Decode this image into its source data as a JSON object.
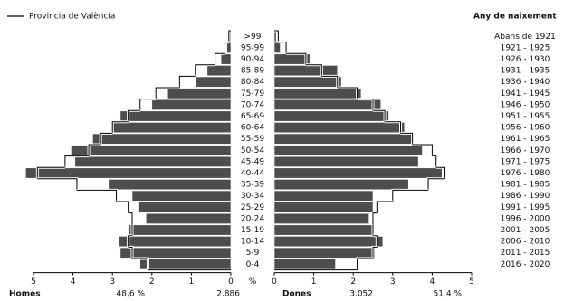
{
  "chart_data": {
    "type": "pyramid",
    "right_title": "Any de naixement",
    "x_unit": "%",
    "categories": [
      ">99",
      "95-99",
      "90-94",
      "85-89",
      "80-84",
      "75-79",
      "70-74",
      "65-69",
      "60-64",
      "55-59",
      "50-54",
      "45-49",
      "40-44",
      "35-39",
      "30-34",
      "25-29",
      "20-24",
      "15-19",
      "10-14",
      "5-9",
      "0-4"
    ],
    "birth_years": [
      "Abans de 1921",
      "1921 - 1925",
      "1926 - 1930",
      "1931 - 1935",
      "1936 - 1940",
      "1941 - 1945",
      "1946 - 1950",
      "1951 - 1955",
      "1956 - 1960",
      "1961 - 1965",
      "1966 - 1970",
      "1971 - 1975",
      "1976 - 1980",
      "1981 - 1985",
      "1986 - 1990",
      "1991 - 1995",
      "1996 - 2000",
      "2001 - 2005",
      "2006 - 2010",
      "2011 - 2015",
      "2016 - 2020"
    ],
    "xlim": [
      0,
      5
    ],
    "xticks": [
      0,
      1,
      2,
      3,
      4,
      5
    ],
    "series": [
      {
        "name": "Homes",
        "color": "#4d4d4d",
        "values": [
          0.05,
          0.1,
          0.25,
          0.6,
          0.9,
          1.6,
          2.0,
          2.8,
          3.0,
          3.5,
          4.05,
          3.95,
          5.2,
          3.1,
          2.5,
          2.35,
          2.15,
          2.6,
          2.85,
          2.8,
          2.3
        ],
        "totals": {
          "values": [
            48.6,
            2886
          ],
          "value_labels": [
            "48,6 %",
            "2.886"
          ]
        }
      },
      {
        "name": "Dones",
        "color": "#4d4d4d",
        "values": [
          0.05,
          0.15,
          0.9,
          1.6,
          1.7,
          2.2,
          2.7,
          2.9,
          3.3,
          3.5,
          3.75,
          3.65,
          4.25,
          3.4,
          2.5,
          2.5,
          2.4,
          2.5,
          2.75,
          2.55,
          1.55
        ],
        "totals": {
          "values": [
            51.4,
            3052
          ],
          "value_labels": [
            "51,4 %",
            "3.052"
          ]
        }
      }
    ],
    "reference": {
      "name": "Provincia de València",
      "color": "#000000",
      "series": [
        {
          "values": [
            0.05,
            0.15,
            0.4,
            0.9,
            1.3,
            1.9,
            2.3,
            2.6,
            3.0,
            3.3,
            3.6,
            4.2,
            4.9,
            3.9,
            2.9,
            2.6,
            2.5,
            2.5,
            2.6,
            2.5,
            2.1
          ]
        },
        {
          "values": [
            0.1,
            0.3,
            0.8,
            1.2,
            1.6,
            2.1,
            2.5,
            2.8,
            3.2,
            3.5,
            4.0,
            4.1,
            4.3,
            3.9,
            3.0,
            2.6,
            2.5,
            2.5,
            2.6,
            2.5,
            2.1
          ]
        }
      ]
    }
  }
}
